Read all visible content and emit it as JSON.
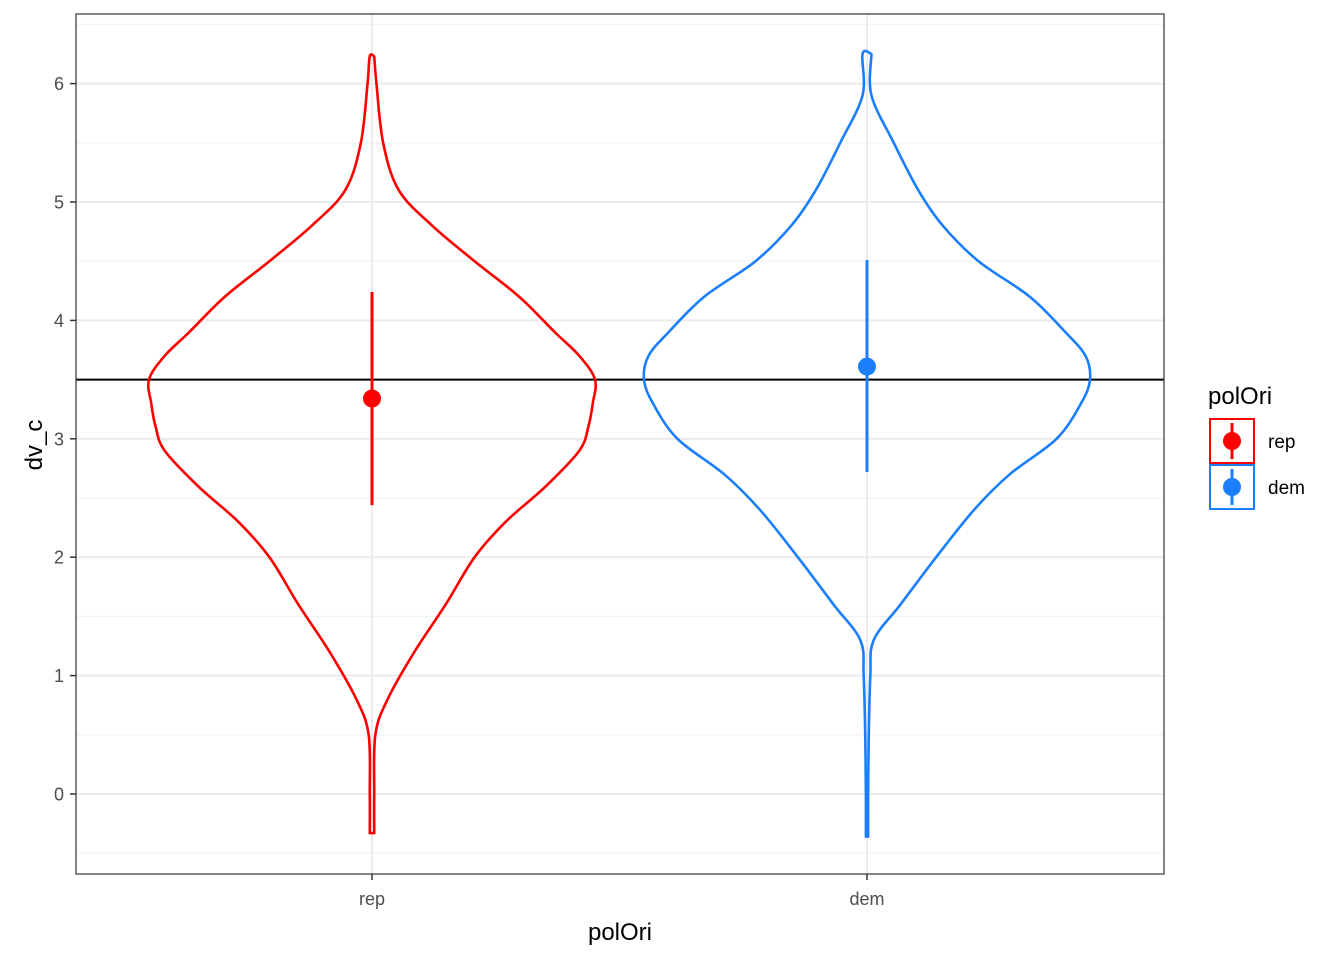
{
  "chart_data": {
    "type": "violin",
    "xlabel": "polOri",
    "ylabel": "dv_c",
    "ylim": [
      -0.7,
      6.6
    ],
    "yticks": [
      0,
      1,
      2,
      3,
      4,
      5,
      6
    ],
    "categories": [
      "rep",
      "dem"
    ],
    "reference_line_y": 3.5,
    "grid": true,
    "legend": {
      "title": "polOri",
      "position": "right",
      "entries": [
        {
          "label": "rep",
          "color": "#ff0000"
        },
        {
          "label": "dem",
          "color": "#1a7eff"
        }
      ]
    },
    "series": [
      {
        "name": "rep",
        "color": "#ff0000",
        "mean": 3.34,
        "interval": [
          2.44,
          4.24
        ],
        "violin_range": [
          -0.33,
          6.23
        ],
        "violin_profile": [
          [
            -0.33,
            0.01
          ],
          [
            0.0,
            0.01
          ],
          [
            0.5,
            0.015
          ],
          [
            0.8,
            0.07
          ],
          [
            1.2,
            0.19
          ],
          [
            1.6,
            0.33
          ],
          [
            2.0,
            0.46
          ],
          [
            2.3,
            0.6
          ],
          [
            2.6,
            0.78
          ],
          [
            2.9,
            0.93
          ],
          [
            3.1,
            0.97
          ],
          [
            3.3,
            0.99
          ],
          [
            3.5,
            1.0
          ],
          [
            3.7,
            0.93
          ],
          [
            3.9,
            0.82
          ],
          [
            4.2,
            0.66
          ],
          [
            4.5,
            0.46
          ],
          [
            4.8,
            0.27
          ],
          [
            5.1,
            0.12
          ],
          [
            5.5,
            0.05
          ],
          [
            6.0,
            0.02
          ],
          [
            6.23,
            0.01
          ]
        ]
      },
      {
        "name": "dem",
        "color": "#1a7eff",
        "mean": 3.61,
        "interval": [
          2.72,
          4.51
        ],
        "violin_range": [
          -0.36,
          6.25
        ],
        "violin_profile": [
          [
            -0.36,
            0.005
          ],
          [
            0.0,
            0.005
          ],
          [
            0.5,
            0.008
          ],
          [
            1.0,
            0.015
          ],
          [
            1.3,
            0.03
          ],
          [
            1.6,
            0.15
          ],
          [
            2.0,
            0.31
          ],
          [
            2.4,
            0.48
          ],
          [
            2.7,
            0.64
          ],
          [
            3.0,
            0.85
          ],
          [
            3.3,
            0.96
          ],
          [
            3.5,
            1.0
          ],
          [
            3.7,
            0.98
          ],
          [
            3.9,
            0.89
          ],
          [
            4.2,
            0.73
          ],
          [
            4.5,
            0.5
          ],
          [
            4.8,
            0.34
          ],
          [
            5.1,
            0.23
          ],
          [
            5.5,
            0.12
          ],
          [
            5.9,
            0.02
          ],
          [
            6.25,
            0.02
          ]
        ]
      }
    ]
  }
}
